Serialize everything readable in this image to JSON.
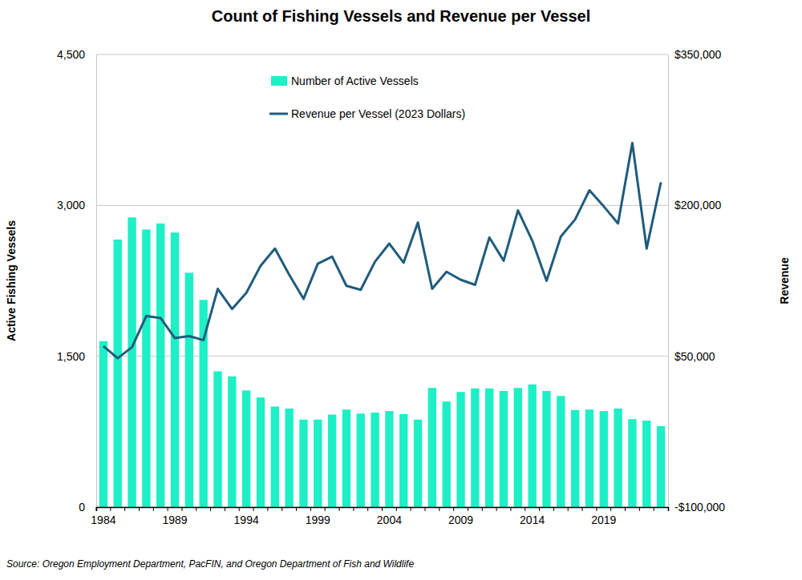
{
  "chart_data": {
    "type": "bar",
    "title": "Count of Fishing Vessels and Revenue per Vessel",
    "y_label": "Active Fishing Vessels",
    "y2_label": "Revenue",
    "source": "Source: Oregon Employment Department, PacFIN, and Oregon Department of Fish and Wildlife",
    "categories": [
      "1984",
      null,
      null,
      null,
      null,
      "1989",
      null,
      null,
      null,
      null,
      "1994",
      null,
      null,
      null,
      null,
      "1999",
      null,
      null,
      null,
      null,
      "2004",
      null,
      null,
      null,
      null,
      "2009",
      null,
      null,
      null,
      null,
      "2014",
      null,
      null,
      null,
      null,
      "2019",
      null,
      null,
      null,
      null
    ],
    "series": [
      {
        "name": "Number of Active Vessels",
        "type": "bar",
        "color": "#1DEFC6",
        "values": [
          1650,
          2660,
          2880,
          2760,
          2820,
          2730,
          2330,
          2060,
          1350,
          1300,
          1160,
          1090,
          1000,
          980,
          870,
          870,
          920,
          970,
          930,
          940,
          955,
          925,
          870,
          1185,
          1050,
          1145,
          1180,
          1180,
          1155,
          1185,
          1220,
          1155,
          1105,
          965,
          970,
          955,
          980,
          875,
          860,
          805
        ]
      },
      {
        "name": "Revenue per Vessel (2023 Dollars)",
        "type": "line",
        "axis": "y2",
        "color": "#1F5C7D",
        "values": [
          60000,
          48000,
          59000,
          90000,
          88000,
          68000,
          70000,
          66000,
          117000,
          97000,
          113000,
          140000,
          157000,
          131000,
          107000,
          142000,
          149000,
          120000,
          116000,
          144000,
          162000,
          143000,
          183000,
          117000,
          134000,
          126000,
          121000,
          168000,
          145000,
          195000,
          165000,
          125000,
          169000,
          186000,
          215000,
          199000,
          182000,
          262000,
          157000,
          223000
        ]
      }
    ],
    "ylim": [
      0,
      4500
    ],
    "yticks": [
      0,
      {
        "value": 1500,
        "label": "1,500"
      },
      {
        "value": 3000,
        "label": "3,000"
      },
      {
        "value": 4500,
        "label": "4,500"
      }
    ],
    "y2lim": [
      -100000,
      350000
    ],
    "y2ticks": [
      {
        "value": -100000,
        "label": "-$100,000"
      },
      {
        "value": 50000,
        "label": "$50,000"
      },
      {
        "value": 200000,
        "label": "$200,000"
      },
      {
        "value": 350000,
        "label": "$350,000"
      }
    ],
    "grid": true,
    "legend": "top"
  }
}
